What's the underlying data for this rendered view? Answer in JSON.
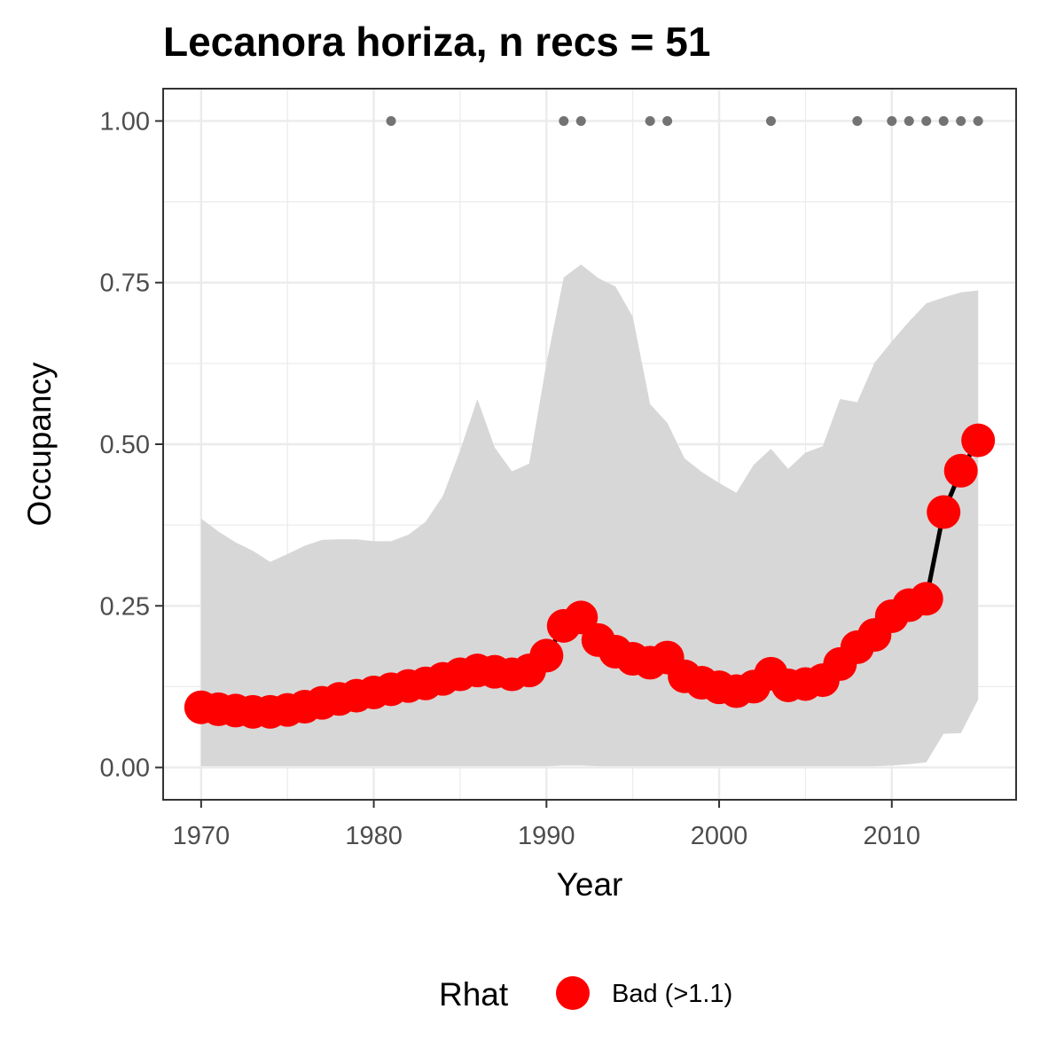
{
  "chart_data": {
    "type": "line",
    "title": "Lecanora horiza, n recs = 51",
    "xlabel": "Year",
    "ylabel": "Occupancy",
    "xlim": [
      1967.8,
      2017.2
    ],
    "ylim": [
      -0.05,
      1.05
    ],
    "x_ticks": [
      1970,
      1980,
      1990,
      2000,
      2010
    ],
    "y_ticks": [
      0.0,
      0.25,
      0.5,
      0.75,
      1.0
    ],
    "y_tick_labels": [
      "0.00",
      "0.25",
      "0.50",
      "0.75",
      "1.00"
    ],
    "grid": true,
    "years": [
      1970,
      1971,
      1972,
      1973,
      1974,
      1975,
      1976,
      1977,
      1978,
      1979,
      1980,
      1981,
      1982,
      1983,
      1984,
      1985,
      1986,
      1987,
      1988,
      1989,
      1990,
      1991,
      1992,
      1993,
      1994,
      1995,
      1996,
      1997,
      1998,
      1999,
      2000,
      2001,
      2002,
      2003,
      2004,
      2005,
      2006,
      2007,
      2008,
      2009,
      2010,
      2011,
      2012,
      2013,
      2014,
      2015
    ],
    "mean": [
      0.093,
      0.09,
      0.088,
      0.086,
      0.086,
      0.089,
      0.094,
      0.1,
      0.106,
      0.111,
      0.116,
      0.121,
      0.126,
      0.13,
      0.137,
      0.144,
      0.15,
      0.148,
      0.144,
      0.15,
      0.173,
      0.219,
      0.232,
      0.197,
      0.179,
      0.168,
      0.162,
      0.17,
      0.141,
      0.131,
      0.124,
      0.118,
      0.125,
      0.145,
      0.127,
      0.129,
      0.135,
      0.16,
      0.186,
      0.205,
      0.234,
      0.251,
      0.261,
      0.395,
      0.459,
      0.506
    ],
    "upper": [
      0.385,
      0.365,
      0.348,
      0.335,
      0.318,
      0.33,
      0.343,
      0.352,
      0.353,
      0.353,
      0.35,
      0.35,
      0.36,
      0.38,
      0.42,
      0.49,
      0.57,
      0.495,
      0.458,
      0.47,
      0.625,
      0.758,
      0.778,
      0.757,
      0.744,
      0.697,
      0.562,
      0.533,
      0.478,
      0.457,
      0.44,
      0.425,
      0.468,
      0.493,
      0.462,
      0.487,
      0.497,
      0.57,
      0.565,
      0.626,
      0.659,
      0.69,
      0.718,
      0.727,
      0.735,
      0.738
    ],
    "lower": [
      0.002,
      0.002,
      0.002,
      0.002,
      0.002,
      0.002,
      0.002,
      0.002,
      0.002,
      0.002,
      0.002,
      0.002,
      0.002,
      0.002,
      0.002,
      0.002,
      0.002,
      0.002,
      0.002,
      0.002,
      0.002,
      0.003,
      0.003,
      0.002,
      0.002,
      0.002,
      0.002,
      0.002,
      0.002,
      0.002,
      0.002,
      0.002,
      0.002,
      0.002,
      0.002,
      0.002,
      0.002,
      0.002,
      0.002,
      0.002,
      0.003,
      0.005,
      0.008,
      0.052,
      0.053,
      0.105
    ],
    "record_years": [
      1981,
      1991,
      1992,
      1996,
      1997,
      2003,
      2008,
      2010,
      2011,
      2012,
      2013,
      2014,
      2015
    ],
    "record_value": 1.0,
    "legend": {
      "title": "Rhat",
      "label": "Bad (>1.1)",
      "placement": "bottom"
    },
    "colors": {
      "points": "#ff0000",
      "line": "#000000",
      "ribbon": "#d6d6d6",
      "records": "#737373",
      "grid_major": "#ebebeb",
      "panel_border": "#333333"
    }
  }
}
